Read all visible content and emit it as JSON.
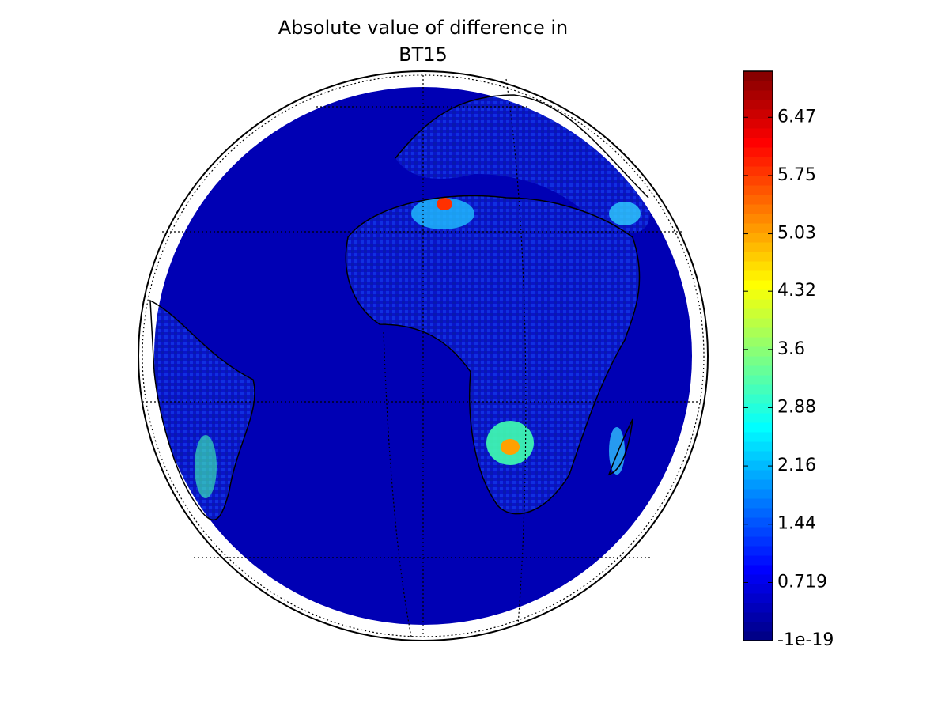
{
  "chart_data": {
    "type": "map",
    "title_lines": [
      "Absolute value of difference in",
      "BT15"
    ],
    "colormap": "jet",
    "clim": [
      -1e-19,
      7.04
    ],
    "cticks": [
      -1e-19,
      0.719,
      1.44,
      2.16,
      2.88,
      3.6,
      4.32,
      5.03,
      5.75,
      6.47
    ]
  }
}
